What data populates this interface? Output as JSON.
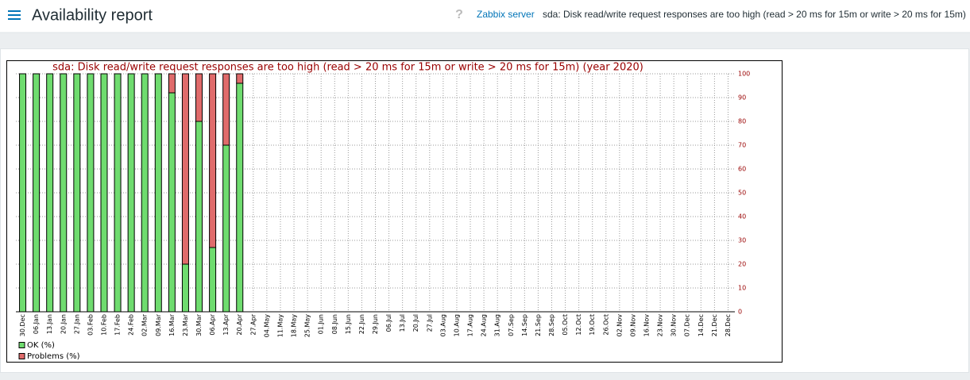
{
  "header": {
    "title": "Availability report",
    "help": "?",
    "host": "Zabbix server",
    "trigger": "sda: Disk read/write request responses are too high (read > 20 ms for 15m or write > 20 ms for 15m)"
  },
  "chart_data": {
    "type": "bar",
    "stacked": true,
    "title": "sda: Disk read/write request responses are too high (read > 20 ms for 15m or write > 20 ms for 15m) (year 2020)",
    "categories": [
      "30.Dec",
      "06.Jan",
      "13.Jan",
      "20.Jan",
      "27.Jan",
      "03.Feb",
      "10.Feb",
      "17.Feb",
      "24.Feb",
      "02.Mar",
      "09.Mar",
      "16.Mar",
      "23.Mar",
      "30.Mar",
      "06.Apr",
      "13.Apr",
      "20.Apr",
      "27.Apr",
      "04.May",
      "11.May",
      "18.May",
      "25.May",
      "01.Jun",
      "08.Jun",
      "15.Jun",
      "22.Jun",
      "29.Jun",
      "06.Jul",
      "13.Jul",
      "20.Jul",
      "27.Jul",
      "03.Aug",
      "10.Aug",
      "17.Aug",
      "24.Aug",
      "31.Aug",
      "07.Sep",
      "14.Sep",
      "21.Sep",
      "28.Sep",
      "05.Oct",
      "12.Oct",
      "19.Oct",
      "26.Oct",
      "02.Nov",
      "09.Nov",
      "16.Nov",
      "23.Nov",
      "30.Nov",
      "07.Dec",
      "14.Dec",
      "21.Dec",
      "28.Dec"
    ],
    "series": [
      {
        "name": "OK (%)",
        "color": "#6fdc6f",
        "values": [
          100,
          100,
          100,
          100,
          100,
          100,
          100,
          100,
          100,
          100,
          100,
          92,
          20,
          80,
          27,
          70,
          96,
          null,
          null,
          null,
          null,
          null,
          null,
          null,
          null,
          null,
          null,
          null,
          null,
          null,
          null,
          null,
          null,
          null,
          null,
          null,
          null,
          null,
          null,
          null,
          null,
          null,
          null,
          null,
          null,
          null,
          null,
          null,
          null,
          null,
          null,
          null,
          null
        ]
      },
      {
        "name": "Problems (%)",
        "color": "#e06b6b",
        "values": [
          0,
          0,
          0,
          0,
          0,
          0,
          0,
          0,
          0,
          0,
          0,
          8,
          80,
          20,
          73,
          30,
          4,
          null,
          null,
          null,
          null,
          null,
          null,
          null,
          null,
          null,
          null,
          null,
          null,
          null,
          null,
          null,
          null,
          null,
          null,
          null,
          null,
          null,
          null,
          null,
          null,
          null,
          null,
          null,
          null,
          null,
          null,
          null,
          null,
          null,
          null,
          null,
          null
        ]
      }
    ],
    "ylim": [
      0,
      100
    ],
    "yticks": [
      0,
      10,
      20,
      30,
      40,
      50,
      60,
      70,
      80,
      90,
      100
    ],
    "grid": true
  }
}
